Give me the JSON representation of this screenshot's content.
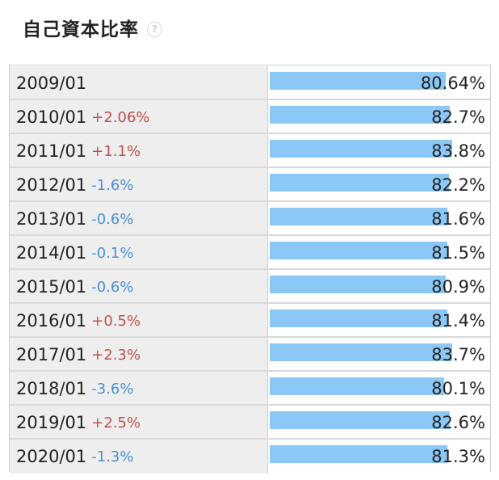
{
  "title": "自己資本比率",
  "help_icon": "question-circle-icon",
  "colors": {
    "up": "#c0504d",
    "down": "#4a90d9",
    "bar": "#8cc8f5"
  },
  "chart_data": {
    "type": "bar",
    "orientation": "horizontal",
    "title": "自己資本比率",
    "categories": [
      "2009/01",
      "2010/01",
      "2011/01",
      "2012/01",
      "2013/01",
      "2014/01",
      "2015/01",
      "2016/01",
      "2017/01",
      "2018/01",
      "2019/01",
      "2020/01"
    ],
    "values": [
      80.64,
      82.7,
      83.8,
      82.2,
      81.6,
      81.5,
      80.9,
      81.4,
      83.7,
      80.1,
      82.6,
      81.3
    ],
    "value_labels": [
      "80.64%",
      "82.7%",
      "83.8%",
      "82.2%",
      "81.6%",
      "81.5%",
      "80.9%",
      "81.4%",
      "83.7%",
      "80.1%",
      "82.6%",
      "81.3%"
    ],
    "changes": [
      "",
      "+2.06%",
      "+1.1%",
      "-1.6%",
      "-0.6%",
      "-0.1%",
      "-0.6%",
      "+0.5%",
      "+2.3%",
      "-3.6%",
      "+2.5%",
      "-1.3%"
    ],
    "xlim": [
      0,
      100
    ]
  }
}
